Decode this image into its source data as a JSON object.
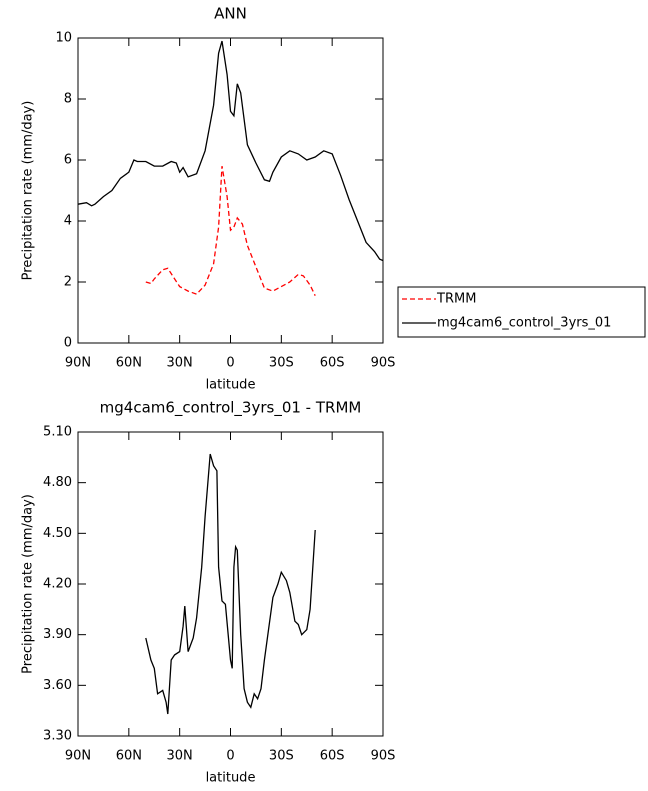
{
  "chart_data": [
    {
      "type": "line",
      "title": "ANN",
      "x_label": "latitude",
      "y_label": "Precipitation rate (mm/day)",
      "xlim": [
        90,
        -90
      ],
      "ylim": [
        0,
        10
      ],
      "xticks": [
        {
          "value": 90,
          "label": "90N"
        },
        {
          "value": 60,
          "label": "60N"
        },
        {
          "value": 30,
          "label": "30N"
        },
        0,
        {
          "value": -30,
          "label": "30S"
        },
        {
          "value": -60,
          "label": "60S"
        },
        {
          "value": -90,
          "label": "90S"
        }
      ],
      "yticks": [
        0,
        2,
        4,
        6,
        8,
        10
      ],
      "legend": "right",
      "series": [
        {
          "name": "TRMM",
          "color": "#ff0000",
          "dash": true,
          "x": [
            50,
            47,
            45,
            40,
            37,
            33,
            30,
            25,
            20,
            15,
            10,
            7,
            5,
            2,
            0,
            -2,
            -4,
            -7,
            -10,
            -15,
            -20,
            -25,
            -30,
            -35,
            -40,
            -43,
            -47,
            -50
          ],
          "values": [
            2.0,
            1.95,
            2.1,
            2.4,
            2.45,
            2.1,
            1.85,
            1.7,
            1.6,
            1.9,
            2.6,
            3.8,
            5.8,
            4.8,
            3.7,
            3.8,
            4.1,
            3.9,
            3.2,
            2.5,
            1.8,
            1.7,
            1.85,
            2.0,
            2.25,
            2.2,
            1.9,
            1.55
          ]
        },
        {
          "name": "mg4cam6_control_3yrs_01",
          "color": "#000000",
          "dash": false,
          "x": [
            90,
            85,
            82,
            80,
            75,
            70,
            65,
            60,
            57,
            55,
            50,
            45,
            40,
            35,
            32,
            30,
            28,
            25,
            20,
            15,
            10,
            7,
            5,
            2,
            0,
            -2,
            -4,
            -6,
            -10,
            -15,
            -20,
            -23,
            -25,
            -30,
            -35,
            -40,
            -45,
            -50,
            -55,
            -60,
            -65,
            -70,
            -75,
            -80,
            -85,
            -88,
            -90
          ],
          "values": [
            4.55,
            4.6,
            4.5,
            4.55,
            4.8,
            5.0,
            5.4,
            5.6,
            6.0,
            5.95,
            5.95,
            5.8,
            5.8,
            5.95,
            5.9,
            5.6,
            5.75,
            5.45,
            5.55,
            6.3,
            7.8,
            9.5,
            9.9,
            8.8,
            7.6,
            7.45,
            8.5,
            8.2,
            6.5,
            5.9,
            5.35,
            5.3,
            5.6,
            6.1,
            6.3,
            6.2,
            6.0,
            6.1,
            6.3,
            6.2,
            5.5,
            4.7,
            4.0,
            3.3,
            3.0,
            2.75,
            2.7
          ]
        }
      ]
    },
    {
      "type": "line",
      "title": "mg4cam6_control_3yrs_01 - TRMM",
      "x_label": "latitude",
      "y_label": "Precipitation rate (mm/day)",
      "xlim": [
        90,
        -90
      ],
      "ylim": [
        3.3,
        5.1
      ],
      "xticks": [
        {
          "value": 90,
          "label": "90N"
        },
        {
          "value": 60,
          "label": "60N"
        },
        {
          "value": 30,
          "label": "30N"
        },
        0,
        {
          "value": -30,
          "label": "30S"
        },
        {
          "value": -60,
          "label": "60S"
        },
        {
          "value": -90,
          "label": "90S"
        }
      ],
      "yticks": [
        {
          "value": 3.3,
          "label": "3.30"
        },
        {
          "value": 3.6,
          "label": "3.60"
        },
        {
          "value": 3.9,
          "label": "3.90"
        },
        {
          "value": 4.2,
          "label": "4.20"
        },
        {
          "value": 4.5,
          "label": "4.50"
        },
        {
          "value": 4.8,
          "label": "4.80"
        },
        {
          "value": 5.1,
          "label": "5.10"
        }
      ],
      "series": [
        {
          "color": "#000000",
          "x": [
            50,
            47,
            45,
            43,
            40,
            38,
            37,
            35,
            33,
            30,
            28,
            27,
            25,
            22,
            20,
            17,
            15,
            12,
            10,
            8,
            7,
            5,
            3,
            0,
            -1,
            -2,
            -3,
            -4,
            -6,
            -8,
            -10,
            -12,
            -14,
            -16,
            -18,
            -20,
            -25,
            -28,
            -30,
            -33,
            -35,
            -38,
            -40,
            -42,
            -45,
            -47,
            -50
          ],
          "values": [
            3.88,
            3.75,
            3.7,
            3.55,
            3.57,
            3.5,
            3.43,
            3.75,
            3.78,
            3.8,
            3.95,
            4.07,
            3.8,
            3.88,
            4.0,
            4.3,
            4.6,
            4.97,
            4.9,
            4.87,
            4.3,
            4.1,
            4.08,
            3.75,
            3.7,
            4.3,
            4.42,
            4.4,
            3.9,
            3.58,
            3.5,
            3.47,
            3.55,
            3.52,
            3.58,
            3.75,
            4.12,
            4.2,
            4.27,
            4.22,
            4.15,
            3.98,
            3.96,
            3.9,
            3.93,
            4.05,
            4.52
          ]
        }
      ]
    }
  ]
}
